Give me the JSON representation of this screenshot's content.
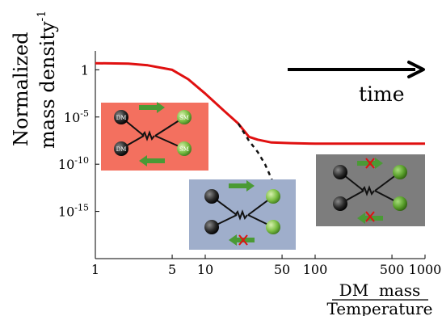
{
  "chart_data": {
    "type": "line",
    "x_scale": "log",
    "y_scale": "log",
    "xlim": [
      1,
      1000
    ],
    "ylim": [
      1e-20,
      100
    ],
    "ylabel_line1": "Normalized",
    "ylabel_line2": "mass density",
    "ylabel_superscript": "-1",
    "xlabel_numerator": "DM  mass",
    "xlabel_denominator": "Temperature",
    "x_ticks": [
      {
        "value": 1,
        "label": "1"
      },
      {
        "value": 5,
        "label": "5"
      },
      {
        "value": 10,
        "label": "10"
      },
      {
        "value": 50,
        "label": "50"
      },
      {
        "value": 100,
        "label": "100"
      },
      {
        "value": 500,
        "label": "500"
      },
      {
        "value": 1000,
        "label": "1000"
      }
    ],
    "y_ticks": [
      {
        "value": 1,
        "label": "1",
        "exp": ""
      },
      {
        "value": 1e-05,
        "label": "10",
        "exp": "-5"
      },
      {
        "value": 1e-10,
        "label": "10",
        "exp": "-10"
      },
      {
        "value": 1e-15,
        "label": "10",
        "exp": "-15"
      }
    ],
    "series": [
      {
        "color": "#e01010",
        "style": "solid",
        "points": [
          [
            1,
            5.0
          ],
          [
            2,
            4.5
          ],
          [
            3,
            3.0
          ],
          [
            5,
            1.0
          ],
          [
            7,
            0.1
          ],
          [
            10,
            0.003
          ],
          [
            15,
            4e-05
          ],
          [
            20,
            2e-06
          ],
          [
            25,
            8e-08
          ],
          [
            30,
            4e-08
          ],
          [
            40,
            2e-08
          ],
          [
            60,
            1.7e-08
          ],
          [
            100,
            1.5e-08
          ],
          [
            300,
            1.5e-08
          ],
          [
            1000,
            1.5e-08
          ]
        ]
      },
      {
        "color": "#111111",
        "style": "dashed",
        "points": [
          [
            20,
            2e-06
          ],
          [
            25,
            3e-08
          ],
          [
            30,
            2e-09
          ],
          [
            35,
            1e-10
          ],
          [
            40,
            3e-12
          ],
          [
            45,
            1e-13
          ],
          [
            50,
            2e-15
          ],
          [
            55,
            3e-17
          ],
          [
            60,
            1e-19
          ]
        ]
      }
    ],
    "annotation_time": "time",
    "colors": {
      "panel_left": "#f3705f",
      "panel_middle": "#9faecb",
      "panel_right": "#7d7d7d",
      "arrow_green": "#4a9a35",
      "cross_red": "#e01010"
    },
    "insets": [
      {
        "name": "left",
        "label_dm": "DM",
        "label_sm": "SM"
      },
      {
        "name": "middle"
      },
      {
        "name": "right"
      }
    ]
  }
}
